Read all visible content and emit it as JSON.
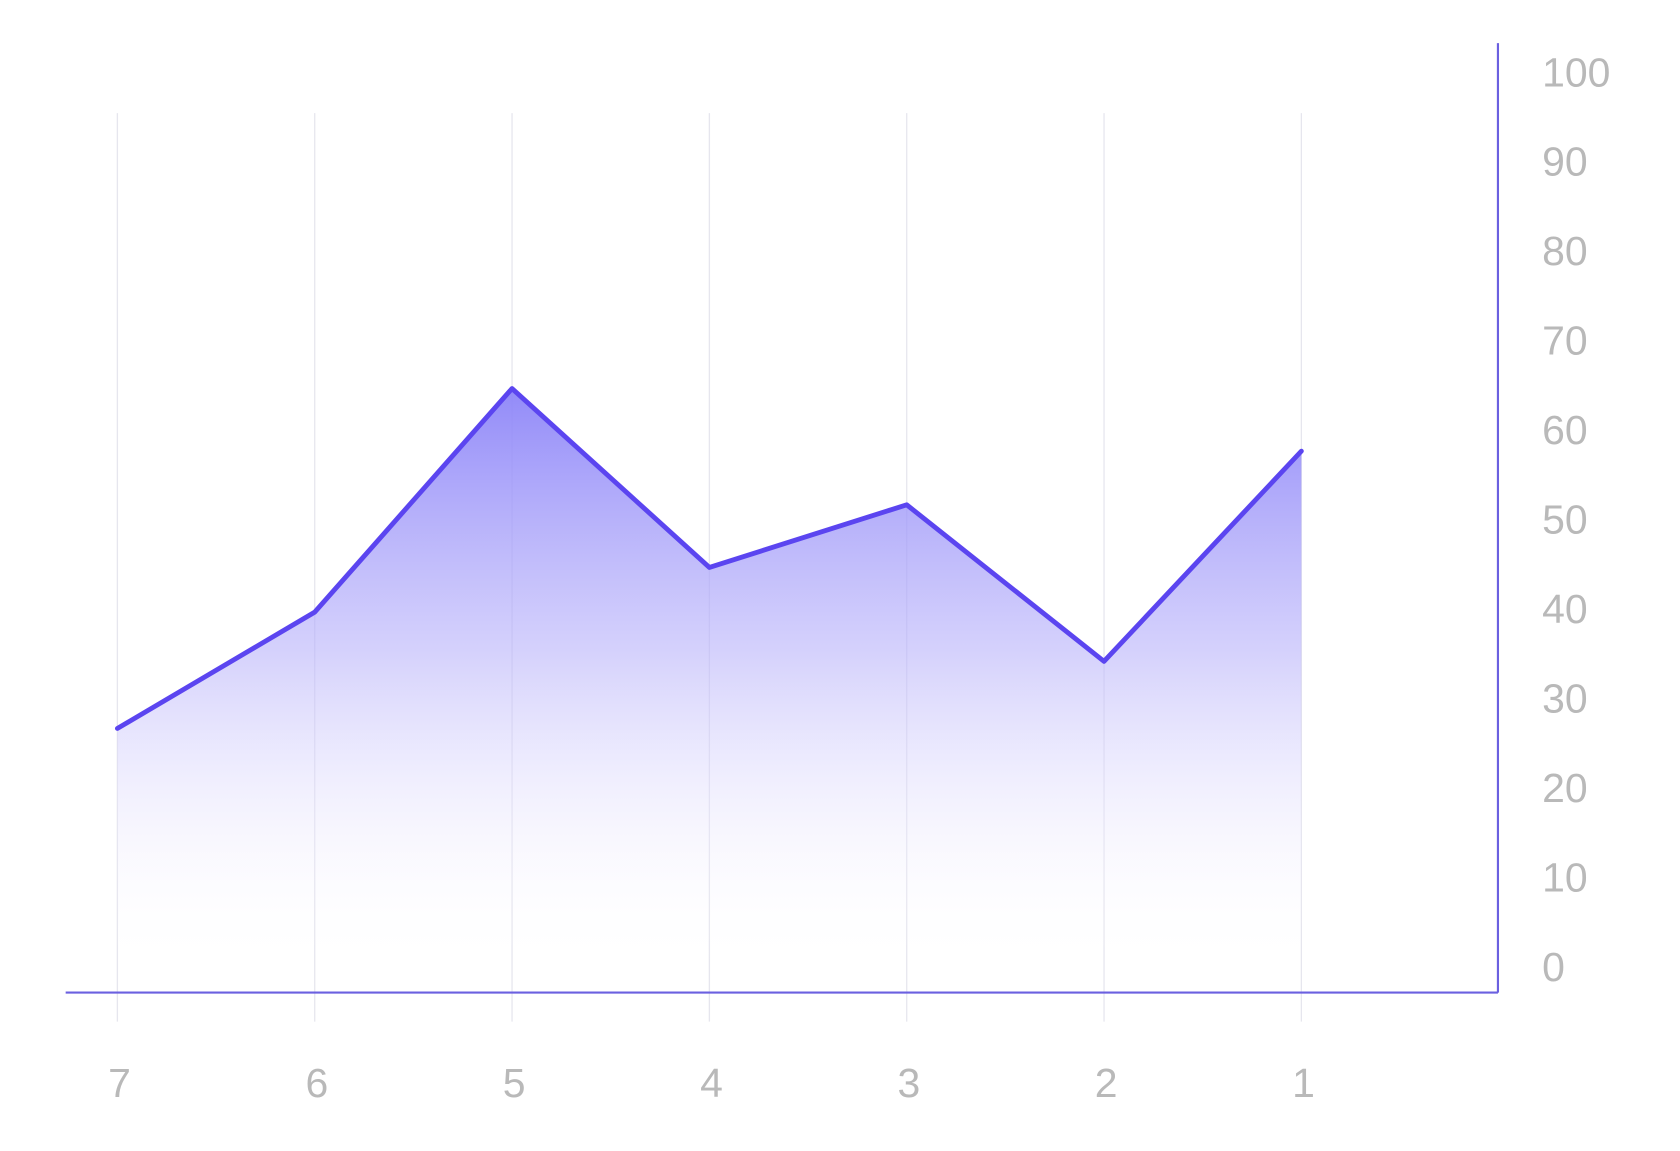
{
  "chart_data": {
    "type": "area",
    "categories": [
      "7",
      "6",
      "5",
      "4",
      "3",
      "2",
      "1"
    ],
    "series": [
      {
        "color": "#5b45f0",
        "values": [
          27,
          40,
          65,
          45,
          52,
          34.5,
          58
        ]
      }
    ],
    "ylim": [
      0,
      100
    ],
    "yticks": [
      0,
      10,
      20,
      30,
      40,
      50,
      60,
      70,
      80,
      90,
      100
    ],
    "grid": "x",
    "y_axis_side": "right"
  }
}
